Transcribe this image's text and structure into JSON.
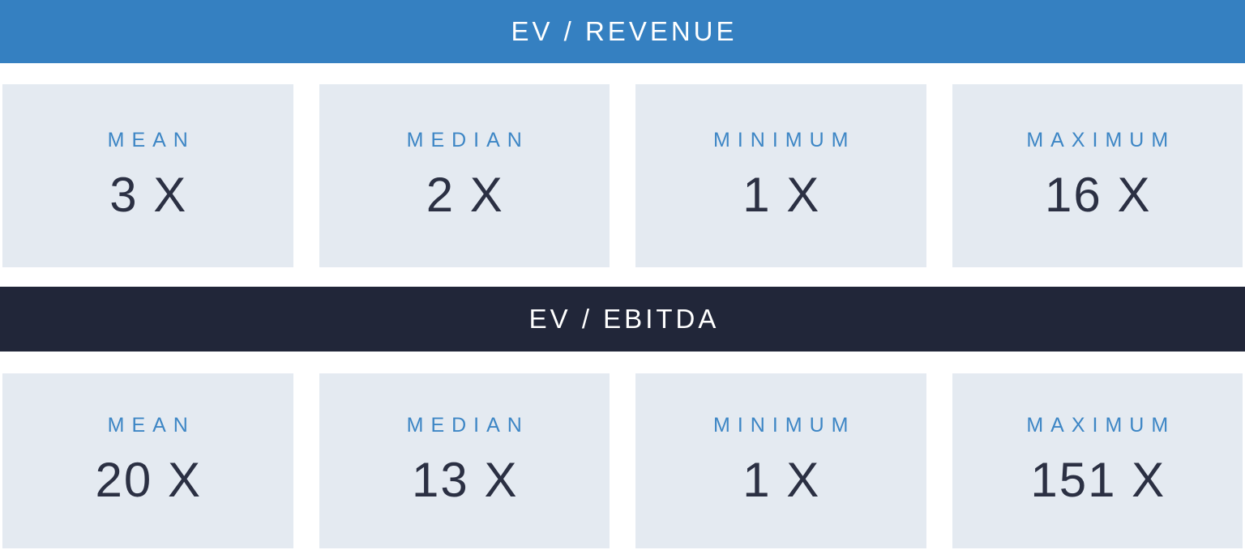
{
  "colors": {
    "revenue_banner_bg": "#3580c1",
    "ebitda_banner_bg": "#212639",
    "card_bg": "#e4eaf1",
    "label_text": "#3d86c5",
    "value_text": "#2b3043",
    "banner_text": "#ffffff"
  },
  "sections": [
    {
      "title": "EV / REVENUE",
      "stats": [
        {
          "label": "MEAN",
          "value": "3 X"
        },
        {
          "label": "MEDIAN",
          "value": "2 X"
        },
        {
          "label": "MINIMUM",
          "value": "1 X"
        },
        {
          "label": "MAXIMUM",
          "value": "16 X"
        }
      ]
    },
    {
      "title": "EV / EBITDA",
      "stats": [
        {
          "label": "MEAN",
          "value": "20 X"
        },
        {
          "label": "MEDIAN",
          "value": "13 X"
        },
        {
          "label": "MINIMUM",
          "value": "1 X"
        },
        {
          "label": "MAXIMUM",
          "value": "151 X"
        }
      ]
    }
  ]
}
